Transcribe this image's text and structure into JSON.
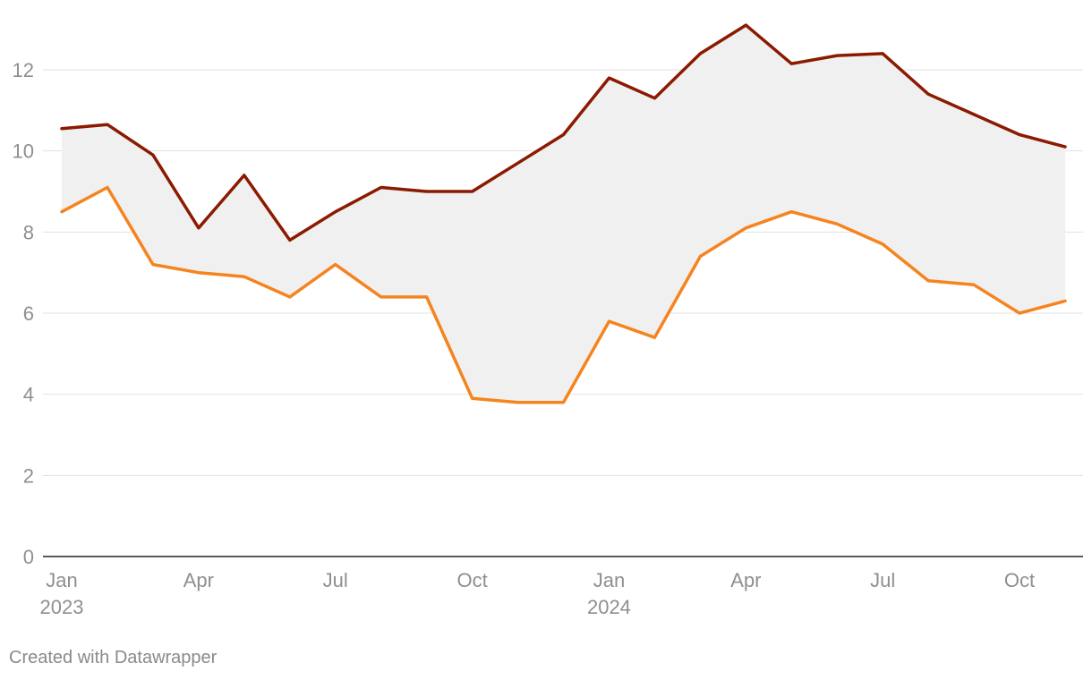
{
  "chart_data": {
    "type": "line",
    "title": "",
    "xlabel": "",
    "ylabel": "",
    "x": [
      "2023-01",
      "2023-02",
      "2023-03",
      "2023-04",
      "2023-05",
      "2023-06",
      "2023-07",
      "2023-08",
      "2023-09",
      "2023-10",
      "2023-11",
      "2023-12",
      "2024-01",
      "2024-02",
      "2024-03",
      "2024-04",
      "2024-05",
      "2024-06",
      "2024-07",
      "2024-08",
      "2024-09",
      "2024-10",
      "2024-11"
    ],
    "series": [
      {
        "color": "#8b1a00",
        "values": [
          10.55,
          10.65,
          9.9,
          8.1,
          9.4,
          7.8,
          8.5,
          9.1,
          9.0,
          9.0,
          9.7,
          10.4,
          11.8,
          11.3,
          12.4,
          13.1,
          12.15,
          12.35,
          12.4,
          11.4,
          10.9,
          10.4,
          10.1
        ]
      },
      {
        "color": "#f5841f",
        "values": [
          8.5,
          9.1,
          7.2,
          7.0,
          6.9,
          6.4,
          7.2,
          6.4,
          6.4,
          3.9,
          3.8,
          3.8,
          5.8,
          5.4,
          7.4,
          8.1,
          8.5,
          8.2,
          7.7,
          6.8,
          6.7,
          6.0,
          6.3
        ]
      }
    ],
    "band_fill": "#f0f0f0",
    "ylim": [
      0,
      13.5
    ],
    "yticks": [
      "0",
      "2",
      "4",
      "6",
      "8",
      "10",
      "12"
    ],
    "xticks": [
      {
        "index": 0,
        "label": "Jan",
        "sublabel": "2023"
      },
      {
        "index": 3,
        "label": "Apr",
        "sublabel": ""
      },
      {
        "index": 6,
        "label": "Jul",
        "sublabel": ""
      },
      {
        "index": 9,
        "label": "Oct",
        "sublabel": ""
      },
      {
        "index": 12,
        "label": "Jan",
        "sublabel": "2024"
      },
      {
        "index": 15,
        "label": "Apr",
        "sublabel": ""
      },
      {
        "index": 18,
        "label": "Jul",
        "sublabel": ""
      },
      {
        "index": 21,
        "label": "Oct",
        "sublabel": ""
      }
    ],
    "grid": true,
    "legend": "none"
  },
  "footer": {
    "credit": "Created with Datawrapper"
  }
}
